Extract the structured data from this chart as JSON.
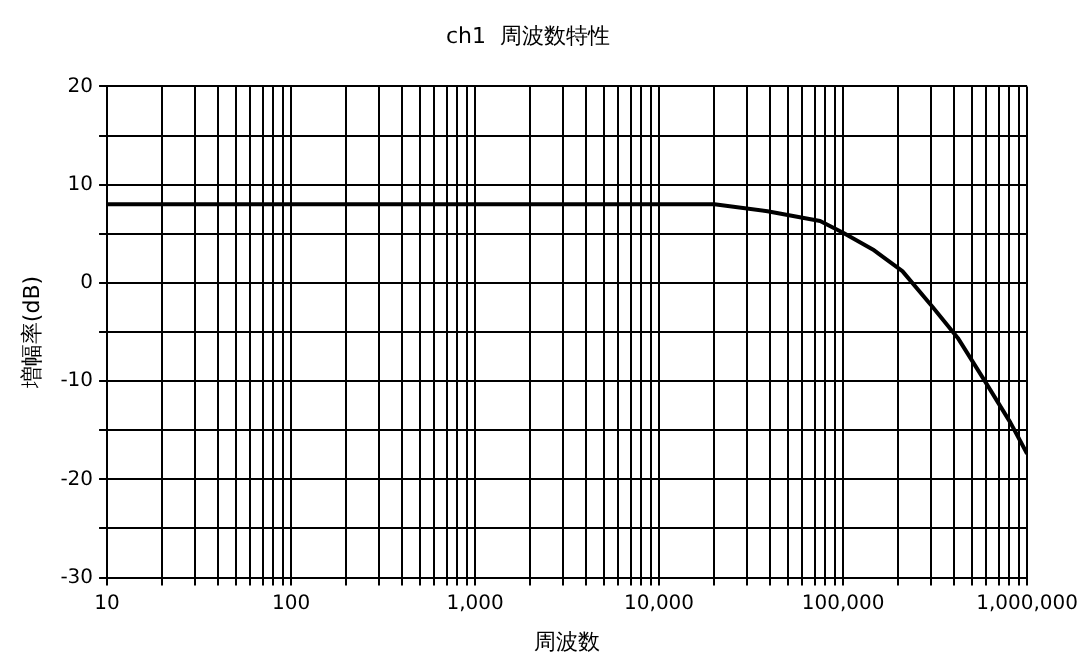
{
  "chart_data": {
    "type": "line",
    "title": "ch1  周波数特性",
    "xlabel": "周波数",
    "ylabel": "増幅率(dB)",
    "log": "x",
    "grid": true,
    "legend": false,
    "marker": "none",
    "line_style": "solid",
    "xlim": [
      10,
      1000000
    ],
    "ylim": [
      -30,
      20
    ],
    "xticks": [
      10,
      {
        "value": 20,
        "label": null
      },
      {
        "value": 30,
        "label": null
      },
      {
        "value": 40,
        "label": null
      },
      {
        "value": 50,
        "label": null
      },
      {
        "value": 60,
        "label": null
      },
      {
        "value": 70,
        "label": null
      },
      {
        "value": 80,
        "label": null
      },
      {
        "value": 90,
        "label": null
      },
      100,
      {
        "value": 200,
        "label": null
      },
      {
        "value": 300,
        "label": null
      },
      {
        "value": 400,
        "label": null
      },
      {
        "value": 500,
        "label": null
      },
      {
        "value": 600,
        "label": null
      },
      {
        "value": 700,
        "label": null
      },
      {
        "value": 800,
        "label": null
      },
      {
        "value": 900,
        "label": null
      },
      {
        "value": 1000,
        "label": "1,000"
      },
      {
        "value": 2000,
        "label": null
      },
      {
        "value": 3000,
        "label": null
      },
      {
        "value": 4000,
        "label": null
      },
      {
        "value": 5000,
        "label": null
      },
      {
        "value": 6000,
        "label": null
      },
      {
        "value": 7000,
        "label": null
      },
      {
        "value": 8000,
        "label": null
      },
      {
        "value": 9000,
        "label": null
      },
      {
        "value": 10000,
        "label": "10,000"
      },
      {
        "value": 20000,
        "label": null
      },
      {
        "value": 30000,
        "label": null
      },
      {
        "value": 40000,
        "label": null
      },
      {
        "value": 50000,
        "label": null
      },
      {
        "value": 60000,
        "label": null
      },
      {
        "value": 70000,
        "label": null
      },
      {
        "value": 80000,
        "label": null
      },
      {
        "value": 90000,
        "label": null
      },
      {
        "value": 100000,
        "label": "100,000"
      },
      {
        "value": 200000,
        "label": null
      },
      {
        "value": 300000,
        "label": null
      },
      {
        "value": 400000,
        "label": null
      },
      {
        "value": 500000,
        "label": null
      },
      {
        "value": 600000,
        "label": null
      },
      {
        "value": 700000,
        "label": null
      },
      {
        "value": 800000,
        "label": null
      },
      {
        "value": 900000,
        "label": null
      },
      {
        "value": 1000000,
        "label": "1,000,000"
      }
    ],
    "yticks": [
      -30,
      {
        "value": -25,
        "label": null
      },
      -20,
      {
        "value": -15,
        "label": null
      },
      -10,
      {
        "value": -5,
        "label": null
      },
      0,
      {
        "value": 5,
        "label": null
      },
      10,
      {
        "value": 15,
        "label": null
      },
      20
    ],
    "series": [
      {
        "color": "#000000",
        "x": [
          10,
          100,
          1000,
          10000,
          20000,
          38800,
          75000,
          100000,
          145000,
          210000,
          305000,
          420000,
          585000,
          810000,
          1000000
        ],
        "values": [
          8,
          8,
          8,
          8,
          8,
          7.3,
          6.3,
          5.1,
          3.4,
          1.2,
          -2.4,
          -5.6,
          -9.9,
          -14.2,
          -17.4
        ]
      }
    ]
  }
}
